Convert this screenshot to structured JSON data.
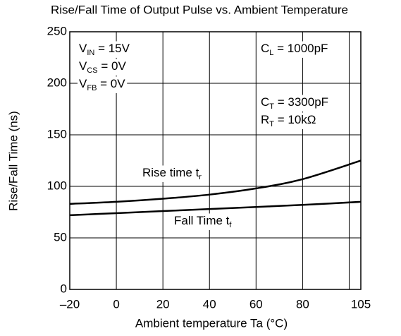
{
  "chart_data": {
    "type": "line",
    "title": "Rise/Fall Time of Output Pulse vs. Ambient Temperature",
    "x_label": "Ambient temperature  Ta (°C)",
    "y_label": "Rise/Fall Time  (ns)",
    "x": [
      -20,
      0,
      20,
      40,
      60,
      80,
      105
    ],
    "series": [
      {
        "name": {
          "text": "Rise time t",
          "sub": "r"
        },
        "color": "#000000",
        "values": [
          83,
          85,
          88,
          92,
          98,
          107,
          125
        ]
      },
      {
        "name": {
          "text": "Fall Time t",
          "sub": "f"
        },
        "color": "#000000",
        "values": [
          72,
          74,
          76,
          78,
          80,
          82,
          85
        ]
      }
    ],
    "annotations": [
      {
        "text": "V",
        "sub": "IN",
        "rest": " = 15V"
      },
      {
        "text": "V",
        "sub": "CS",
        "rest": " = 0V"
      },
      {
        "text": "V",
        "sub": "FB",
        "rest": " = 0V"
      },
      {
        "text": "C",
        "sub": "L",
        "rest": " = 1000pF"
      },
      {
        "text": "C",
        "sub": "T",
        "rest": " = 3300pF"
      },
      {
        "text": "R",
        "sub": "T",
        "rest": " = 10kΩ"
      }
    ],
    "xlim": [
      -20,
      105
    ],
    "xticks": [
      {
        "value": -20,
        "label": "–20"
      },
      0,
      20,
      40,
      60,
      80,
      105
    ],
    "xgrid": [
      0,
      20,
      40,
      60,
      80,
      100
    ],
    "ylim": [
      0,
      250
    ],
    "yticks": [
      0,
      50,
      100,
      150,
      200,
      250
    ],
    "grid": true
  }
}
